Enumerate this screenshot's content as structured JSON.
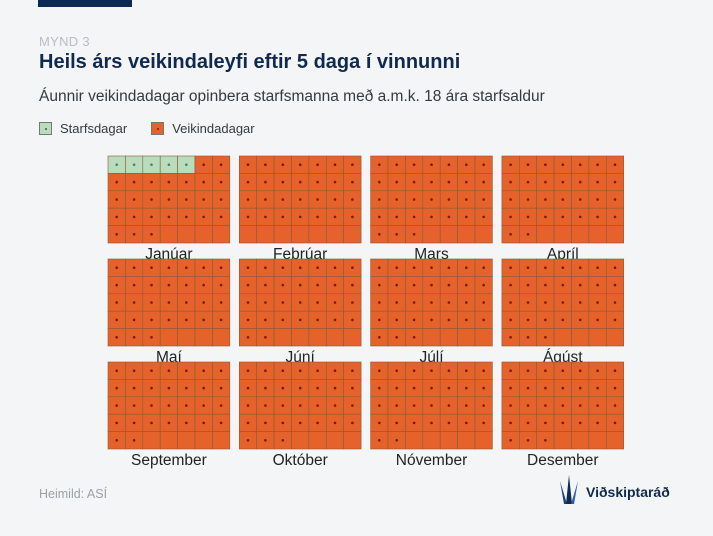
{
  "header": {
    "kicker": "MYND 3",
    "title": "Heils árs veikindaleyfi eftir 5 daga í vinnunni",
    "subtitle": "Áunnir veikindadagar opinbera starfsmanna með a.m.k. 18 ára starfsaldur"
  },
  "legend": {
    "work": "Starfsdagar",
    "sick": "Veikindadagar"
  },
  "colors": {
    "work": "#b8dcbc",
    "sick": "#e5622a",
    "grid_line": "#8a5a3c",
    "text_dark": "#102a4f"
  },
  "chart_data": {
    "type": "waffle",
    "grid_columns": 7,
    "grid_rows": 5,
    "months": [
      {
        "name": "Janúar",
        "days": 31,
        "work_days": 5
      },
      {
        "name": "Febrúar",
        "days": 28,
        "work_days": 0
      },
      {
        "name": "Mars",
        "days": 31,
        "work_days": 0
      },
      {
        "name": "Apríl",
        "days": 30,
        "work_days": 0
      },
      {
        "name": "Maí",
        "days": 31,
        "work_days": 0
      },
      {
        "name": "Júní",
        "days": 30,
        "work_days": 0
      },
      {
        "name": "Júlí",
        "days": 31,
        "work_days": 0
      },
      {
        "name": "Ágúst",
        "days": 31,
        "work_days": 0
      },
      {
        "name": "September",
        "days": 30,
        "work_days": 0
      },
      {
        "name": "Október",
        "days": 31,
        "work_days": 0
      },
      {
        "name": "Nóvember",
        "days": 30,
        "work_days": 0
      },
      {
        "name": "Desember",
        "days": 31,
        "work_days": 0
      }
    ]
  },
  "footer": {
    "source": "Heimild: ASÍ",
    "logo_text": "Viðskiptaráð",
    "logo_icon": "viskiptarad-logo-icon"
  }
}
